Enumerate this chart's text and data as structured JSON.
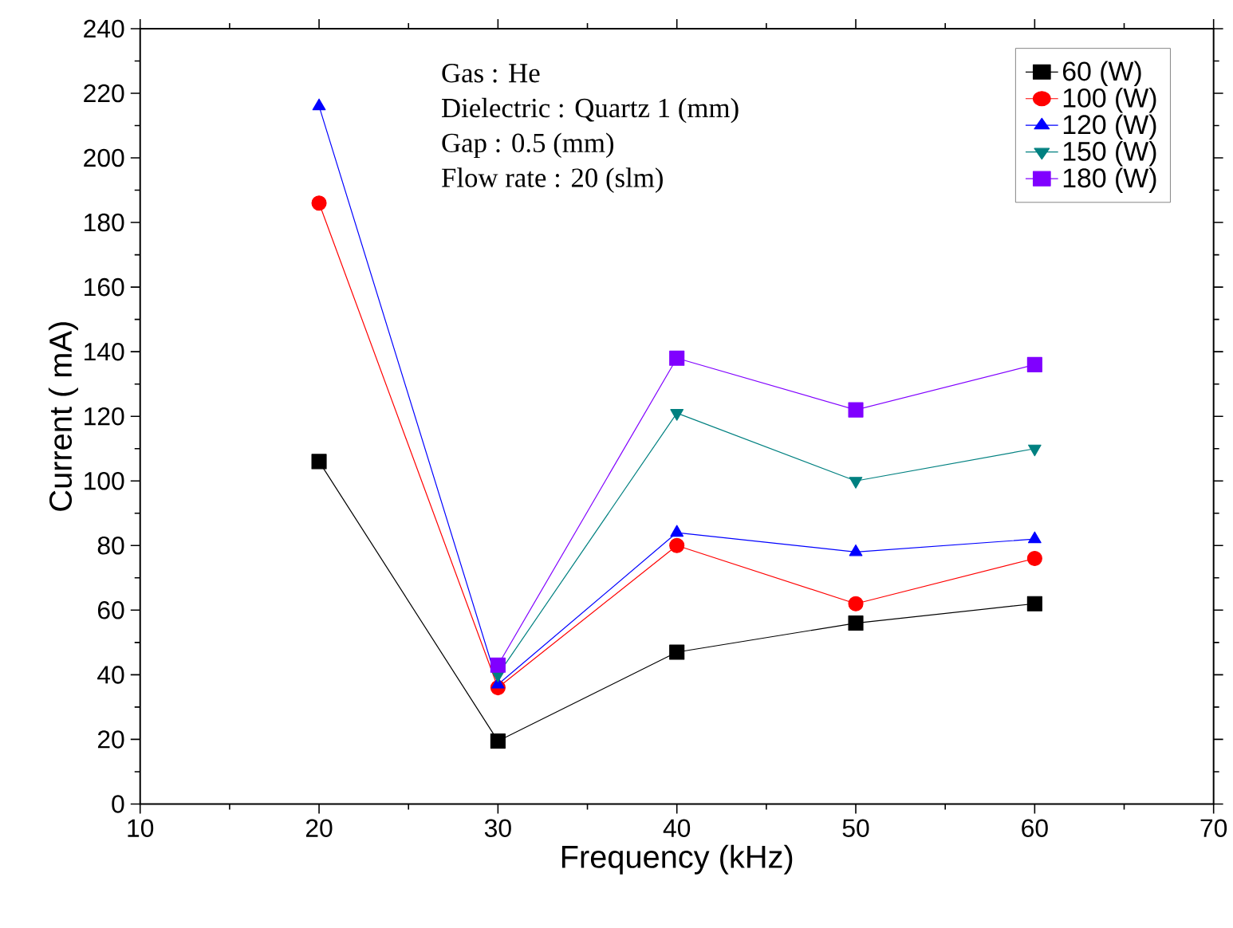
{
  "chart_data": {
    "type": "line",
    "xlabel": "Frequency (kHz)",
    "ylabel": "Current ( mA)",
    "x": [
      20,
      30,
      40,
      50,
      60
    ],
    "series": [
      {
        "name": "60 (W)",
        "color": "#000000",
        "marker": "square",
        "values": [
          106,
          19.5,
          47,
          56,
          62
        ]
      },
      {
        "name": "100 (W)",
        "color": "#ff0000",
        "marker": "circle",
        "values": [
          186,
          36,
          80,
          62,
          76
        ]
      },
      {
        "name": "120 (W)",
        "color": "#0000ff",
        "marker": "triangle",
        "values": [
          216,
          37,
          84,
          78,
          82
        ]
      },
      {
        "name": "150 (W)",
        "color": "#008080",
        "marker": "triangle-down",
        "x": [
          30,
          40,
          50,
          60
        ],
        "values": [
          40,
          121,
          100,
          110
        ]
      },
      {
        "name": "180 (W)",
        "color": "#8000ff",
        "marker": "square",
        "x": [
          30,
          40,
          50,
          60
        ],
        "values": [
          43,
          138,
          122,
          136
        ]
      }
    ],
    "xlim": [
      10,
      70
    ],
    "xticks": [
      10,
      20,
      30,
      40,
      50,
      60,
      70
    ],
    "ylim": [
      0,
      240
    ],
    "yticks": [
      0,
      20,
      40,
      60,
      80,
      100,
      120,
      140,
      160,
      180,
      200,
      220,
      240
    ],
    "annotations": [
      "Gas : He",
      "Dielectric : Quartz 1 (mm)",
      "Gap : 0.5 (mm)",
      "Flow rate : 20 (slm)"
    ],
    "legend": "top right",
    "grid": false,
    "line_style": "solid"
  }
}
